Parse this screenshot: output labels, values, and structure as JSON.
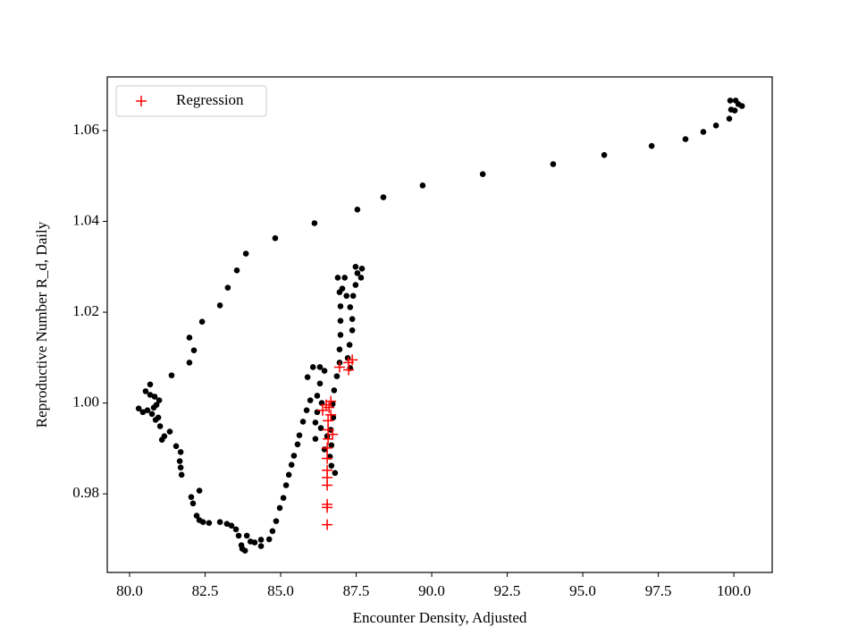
{
  "chart_data": {
    "type": "scatter",
    "xlabel": "Encounter Density, Adjusted",
    "ylabel": "Reproductive Number R_d, Daily",
    "xlim": [
      79.26,
      101.27
    ],
    "ylim": [
      0.9627,
      1.0718
    ],
    "xticks": [
      {
        "value": 80,
        "label": "80.0"
      },
      82.5,
      {
        "value": 85,
        "label": "85.0"
      },
      87.5,
      {
        "value": 90,
        "label": "90.0"
      },
      92.5,
      {
        "value": 95,
        "label": "95.0"
      },
      97.5,
      {
        "value": 100,
        "label": "100.0"
      }
    ],
    "yticks": [
      0.98,
      {
        "value": 1,
        "label": "1.00"
      },
      1.02,
      1.04,
      1.06
    ],
    "legend": "upper left",
    "series": [
      {
        "color": "#000000",
        "marker": "dot",
        "x": [
          99.85,
          99.91,
          99.88,
          100.06,
          100.15,
          100.27,
          100.03,
          99.41,
          98.99,
          98.4,
          97.28,
          95.71,
          94.02,
          91.69,
          89.7,
          88.4,
          87.54,
          86.12,
          84.82,
          83.85,
          83.55,
          83.25,
          82.99,
          82.4,
          82.13,
          81.98,
          81.98,
          81.39,
          80.68,
          80.53,
          80.68,
          80.83,
          80.98,
          80.89,
          80.8,
          80.59,
          80.44,
          80.3,
          80.74,
          80.95,
          80.86,
          81.01,
          81.15,
          81.07,
          81.33,
          81.54,
          81.69,
          81.66,
          81.69,
          81.72,
          82.04,
          82.1,
          82.31,
          82.22,
          82.31,
          82.43,
          82.63,
          82.99,
          83.22,
          83.37,
          83.52,
          83.61,
          83.7,
          83.73,
          83.82,
          83.88,
          84.0,
          84.14,
          84.35,
          84.35,
          84.62,
          84.73,
          84.85,
          84.97,
          85.09,
          85.18,
          85.27,
          85.36,
          85.44,
          85.56,
          85.62,
          85.74,
          85.86,
          85.98,
          85.89,
          86.07,
          86.3,
          86.45,
          86.3,
          86.21,
          86.36,
          86.21,
          86.15,
          86.15,
          86.33,
          86.45,
          86.54,
          86.66,
          86.63,
          86.68,
          86.8,
          86.68,
          86.74,
          86.72,
          86.77,
          86.86,
          86.95,
          86.95,
          86.98,
          86.98,
          86.98,
          86.95,
          86.89,
          87.04,
          87.12,
          87.18,
          87.3,
          87.37,
          87.37,
          87.28,
          87.22,
          87.3,
          87.4,
          87.48,
          87.54,
          87.48,
          87.66,
          87.69
        ],
        "values": [
          1.0626,
          1.0646,
          1.0666,
          1.0666,
          1.0658,
          1.0654,
          1.0644,
          1.0611,
          1.0597,
          1.0581,
          1.0566,
          1.0546,
          1.0526,
          1.0504,
          1.0479,
          1.0453,
          1.0426,
          1.0396,
          1.0363,
          1.0329,
          1.0292,
          1.0254,
          1.0215,
          1.0179,
          1.0116,
          1.0144,
          1.0089,
          1.0061,
          1.0018,
          1.0026,
          1.0041,
          1.0014,
          1.0006,
          0.9996,
          0.999,
          0.9984,
          0.998,
          0.9988,
          0.9976,
          0.9968,
          0.9963,
          0.9949,
          0.9927,
          0.9919,
          0.9937,
          0.9905,
          0.9892,
          0.9872,
          0.9858,
          0.9842,
          0.9793,
          0.9779,
          0.9807,
          0.9752,
          0.9742,
          0.9738,
          0.9736,
          0.9738,
          0.9734,
          0.973,
          0.9722,
          0.9708,
          0.9687,
          0.9679,
          0.9675,
          0.9708,
          0.9695,
          0.9693,
          0.9685,
          0.9699,
          0.97,
          0.9718,
          0.974,
          0.9769,
          0.9791,
          0.9819,
          0.9842,
          0.9864,
          0.9884,
          0.9909,
          0.9929,
          0.9959,
          0.9984,
          1.0006,
          1.0057,
          1.0079,
          1.0079,
          1.0071,
          1.0043,
          1.0016,
          1.0,
          0.998,
          0.9957,
          0.9921,
          0.9945,
          0.9898,
          0.9927,
          0.9941,
          0.9882,
          0.9862,
          0.9846,
          0.9907,
          0.9968,
          0.9998,
          1.0028,
          1.0059,
          1.0089,
          1.0118,
          1.015,
          1.0181,
          1.0213,
          1.0244,
          1.0276,
          1.0252,
          1.0276,
          1.0236,
          1.0211,
          1.0185,
          1.016,
          1.0128,
          1.0099,
          1.0077,
          1.0236,
          1.026,
          1.0286,
          1.03,
          1.0276,
          1.0296
        ]
      },
      {
        "name": "Regression",
        "color": "#ff0000",
        "marker": "plus",
        "x": [
          86.54,
          86.54,
          86.54,
          86.54,
          86.54,
          86.54,
          86.54,
          86.54,
          86.57,
          86.57,
          86.57,
          86.6,
          86.39,
          86.51,
          86.66,
          86.66,
          86.95,
          87.25,
          87.37,
          87.25,
          86.72
        ],
        "values": [
          0.9732,
          0.9777,
          0.977,
          0.9819,
          0.9836,
          0.9852,
          0.9878,
          0.9901,
          0.9921,
          0.9941,
          0.9961,
          0.999,
          0.9984,
          0.9996,
          0.9974,
          1.0004,
          1.0079,
          1.0089,
          1.0095,
          1.0073,
          0.9931
        ]
      }
    ]
  }
}
